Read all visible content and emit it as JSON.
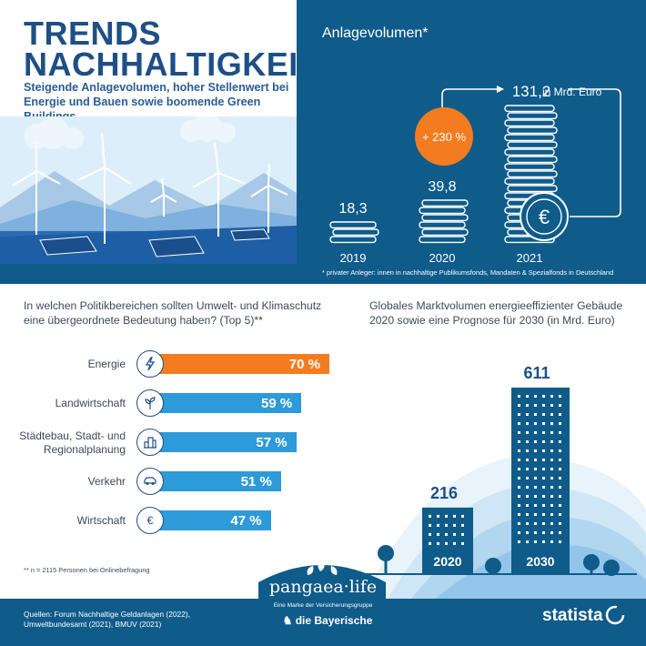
{
  "header": {
    "title_line1": "TRENDS",
    "title_line2": "NACHHALTIGKEIT",
    "subtitle": "Steigende Anlagevolumen, hoher Stellenwert bei Energie und Bauen sowie boomende Green Buildings"
  },
  "colors": {
    "navy": "#0f5b8a",
    "blue": "#2d9ad9",
    "orange": "#f47c20",
    "title": "#1e4f86"
  },
  "anlage": {
    "title": "Anlagevolumen*",
    "unit": "in Mrd. Euro",
    "growth_label": "+ 230 %",
    "footnote": "* privater Anleger: innen in nachhaltige Publikumsfonds, Mandaten & Spezialfonds in Deutschland"
  },
  "politik": {
    "question": "In welchen Politikbereichen sollten Umwelt- und Klimaschutz eine übergeordnete Bedeutung haben? (Top 5)**",
    "footnote": "** n = 2115 Personen bei Onlinebefragung"
  },
  "gebaeude": {
    "title": "Globales Marktvolumen energieeffizienter Gebäude 2020 sowie eine Prognose für 2030 (in Mrd. Euro)"
  },
  "footer": {
    "sources": "Quellen: Forum Nachhaltige Geldanlagen (2022), Umweltbundesamt (2021), BMUV (2021)",
    "brand": "pangaea·life",
    "brand_sub": "Eine Marke der Versicherungsgruppe",
    "brand_parent": "die Bayerische",
    "statista": "statista"
  },
  "chart_data": [
    {
      "type": "bar",
      "title": "Anlagevolumen*",
      "categories": [
        "2019",
        "2020",
        "2021"
      ],
      "values": [
        18.3,
        39.8,
        131.2
      ],
      "value_labels": [
        "18,3",
        "39,8",
        "131,2"
      ],
      "unit": "in Mrd. Euro"
    },
    {
      "type": "bar",
      "orientation": "horizontal",
      "title": "In welchen Politikbereichen sollten Umwelt- und Klimaschutz eine übergeordnete Bedeutung haben? (Top 5)**",
      "categories": [
        "Energie",
        "Landwirtschaft",
        "Städtebau, Stadt- und Regionalplanung",
        "Verkehr",
        "Wirtschaft"
      ],
      "values": [
        70,
        59,
        57,
        51,
        47
      ],
      "value_labels": [
        "70 %",
        "59 %",
        "57 %",
        "51 %",
        "47 %"
      ],
      "icons": [
        "lightning-icon",
        "plant-icon",
        "city-icon",
        "car-icon",
        "euro-icon"
      ]
    },
    {
      "type": "bar",
      "title": "Globales Marktvolumen energieeffizienter Gebäude 2020 sowie eine Prognose für 2030 (in Mrd. Euro)",
      "categories": [
        "2020",
        "2030"
      ],
      "values": [
        216,
        611
      ],
      "value_labels": [
        "216",
        "611"
      ]
    }
  ]
}
